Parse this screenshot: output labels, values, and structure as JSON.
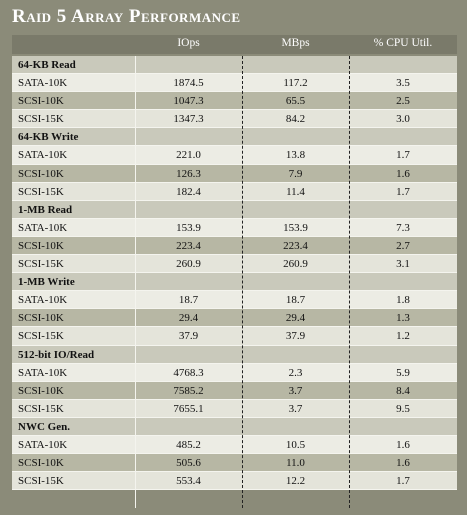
{
  "title": "Raid 5 Array Performance",
  "table": {
    "columns": [
      "IOps",
      "MBps",
      "% CPU Util."
    ],
    "groups": [
      {
        "title": "64-KB Read",
        "rows": [
          [
            "SATA-10K",
            "1874.5",
            "117.2",
            "3.5"
          ],
          [
            "SCSI-10K",
            "1047.3",
            "65.5",
            "2.5"
          ],
          [
            "SCSI-15K",
            "1347.3",
            "84.2",
            "3.0"
          ]
        ]
      },
      {
        "title": "64-KB Write",
        "rows": [
          [
            "SATA-10K",
            "221.0",
            "13.8",
            "1.7"
          ],
          [
            "SCSI-10K",
            "126.3",
            "7.9",
            "1.6"
          ],
          [
            "SCSI-15K",
            "182.4",
            "11.4",
            "1.7"
          ]
        ]
      },
      {
        "title": "1-MB Read",
        "rows": [
          [
            "SATA-10K",
            "153.9",
            "153.9",
            "7.3"
          ],
          [
            "SCSI-10K",
            "223.4",
            "223.4",
            "2.7"
          ],
          [
            "SCSI-15K",
            "260.9",
            "260.9",
            "3.1"
          ]
        ]
      },
      {
        "title": "1-MB Write",
        "rows": [
          [
            "SATA-10K",
            "18.7",
            "18.7",
            "1.8"
          ],
          [
            "SCSI-10K",
            "29.4",
            "29.4",
            "1.3"
          ],
          [
            "SCSI-15K",
            "37.9",
            "37.9",
            "1.2"
          ]
        ]
      },
      {
        "title": "512-bit IO/Read",
        "rows": [
          [
            "SATA-10K",
            "4768.3",
            "2.3",
            "5.9"
          ],
          [
            "SCSI-10K",
            "7585.2",
            "3.7",
            "8.4"
          ],
          [
            "SCSI-15K",
            "7655.1",
            "3.7",
            "9.5"
          ]
        ]
      },
      {
        "title": "NWC Gen.",
        "rows": [
          [
            "SATA-10K",
            "485.2",
            "10.5",
            "1.6"
          ],
          [
            "SCSI-10K",
            "505.6",
            "11.0",
            "1.6"
          ],
          [
            "SCSI-15K",
            "553.4",
            "12.2",
            "1.7"
          ]
        ]
      }
    ]
  }
}
